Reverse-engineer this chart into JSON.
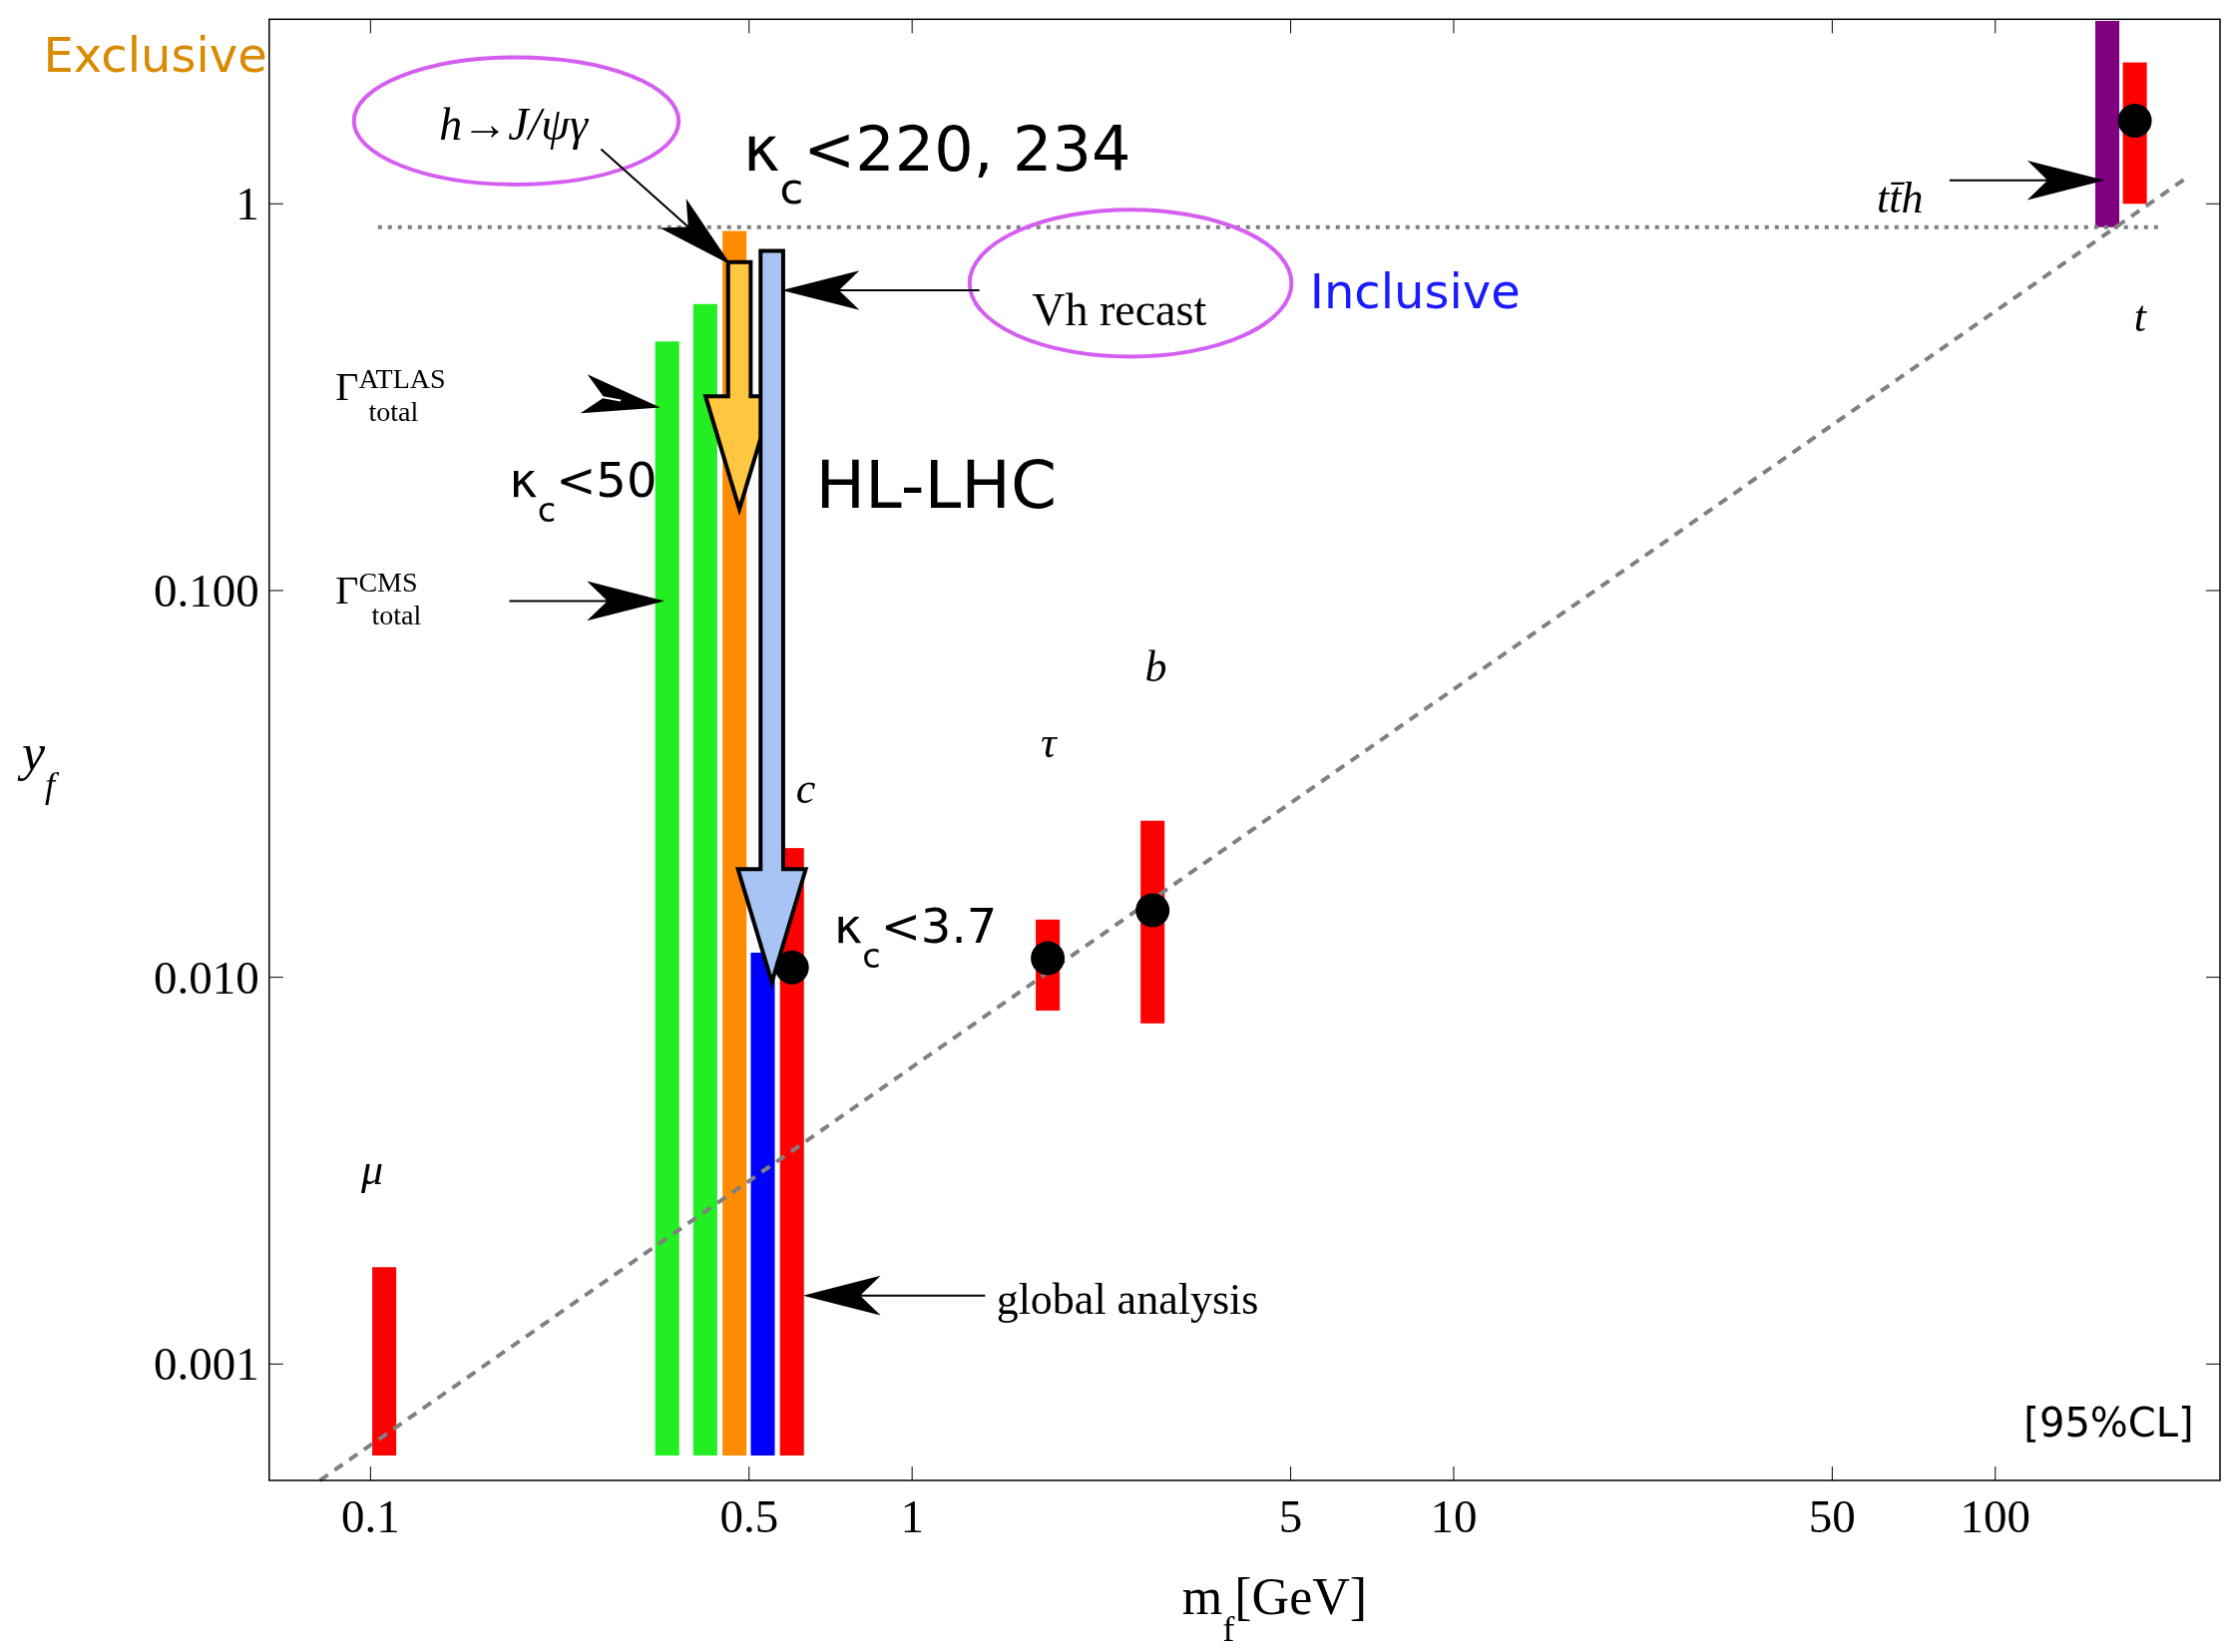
{
  "chart_data": {
    "type": "bar",
    "xlabel": "m$_{f}$[GeV]",
    "ylabel": "y$_{f}$",
    "log": "xy",
    "xlim": [
      0.065,
      260
    ],
    "ylim": [
      0.0005,
      3.0
    ],
    "xticks": [
      0.1,
      0.5,
      1,
      5,
      10,
      50,
      100
    ],
    "yticks": [
      {
        "value": 1,
        "label": "1"
      },
      {
        "value": 0.1,
        "label": "0.100"
      },
      {
        "value": 0.01,
        "label": "0.010"
      },
      {
        "value": 0.001,
        "label": "0.001"
      }
    ],
    "series": [
      {
        "color": "#ff0000",
        "x": [
          0.106,
          0.6,
          1.78,
          2.78,
          181
        ],
        "base": [
          0.00058,
          0.00058,
          0.0082,
          0.0076,
          1.0
        ],
        "values": [
          0.0012,
          0.021,
          0.0059,
          0.0178,
          1.32
        ]
      },
      {
        "color": "#22ee22",
        "x": [
          0.353,
          0.415
        ],
        "base": [
          0.00058,
          0.00058
        ],
        "values": [
          0.44,
          0.55
        ]
      },
      {
        "color": "#ff8c00",
        "x": [
          0.47
        ],
        "base": [
          0.00058
        ],
        "values": [
          0.85
        ]
      },
      {
        "color": "#0000ff",
        "x": [
          0.53
        ],
        "base": [
          0.00058
        ],
        "values": [
          0.011
        ]
      },
      {
        "color": "#800080",
        "x": [
          161
        ],
        "base": [
          0.87
        ],
        "values": [
          2.1
        ]
      },
      {
        "type": "line",
        "color": "#808080",
        "line_style": "dashed",
        "x": [
          0.0806,
          224
        ],
        "values": [
          0.0005,
          1.16
        ]
      },
      {
        "type": "scatter",
        "color": "#000000",
        "marker": "circle",
        "x": [
          0.6,
          1.78,
          2.78,
          181
        ],
        "values": [
          0.0106,
          0.0112,
          0.0149,
          1.64
        ]
      }
    ],
    "ref_lines": [
      {
        "axis": "y",
        "value": 0.87,
        "color": "#808080",
        "line_style": "dotted"
      }
    ],
    "annotations": [
      "Exclusive",
      "Inclusive",
      "[95%CL]",
      "h→J/ψγ",
      "κ$_{c}$<220, 234",
      "Vh recast",
      "Γ$^{ATLAS}$$_{total}$",
      "κ$_{c}$<50",
      "HL-LHC",
      "Γ$^{CMS}$$_{total}$",
      "c",
      "τ",
      "b",
      "μ",
      "t",
      "tt̄h",
      "κ$_{c}$<3.7",
      "global analysis"
    ]
  }
}
